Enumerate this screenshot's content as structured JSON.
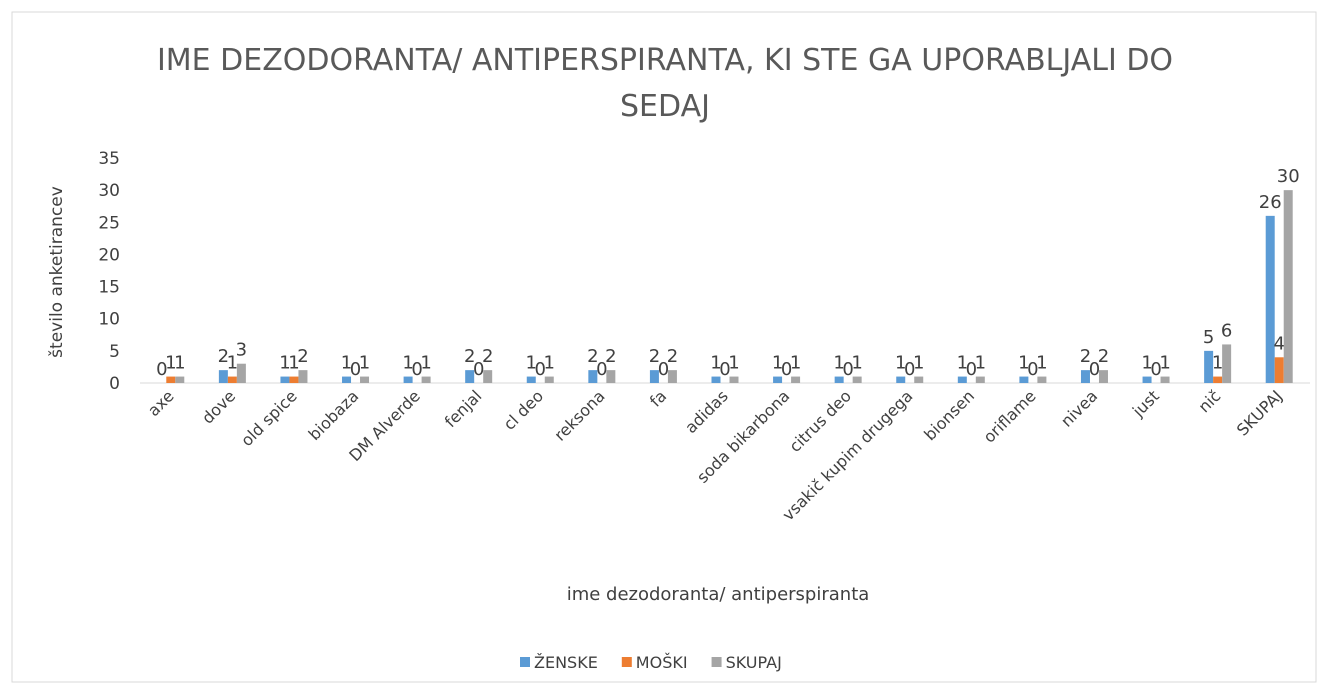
{
  "chart_data": {
    "type": "bar",
    "title": "IME DEZODORANTA/ ANTIPERSPIRANTA, KI STE GA UPORABLJALI DO SEDAJ",
    "x_label": "ime dezodoranta/ antiperspiranta",
    "y_label": "število anketirancev",
    "categories": [
      "axe",
      "dove",
      "old spice",
      "biobaza",
      "DM Alverde",
      "fenjal",
      "cl deo",
      "reksona",
      "fa",
      "adidas",
      "soda bikarbona",
      "citrus deo",
      "vsakič kupim drugega",
      "bionsen",
      "oriflame",
      "nivea",
      "just",
      "nič",
      "SKUPAJ"
    ],
    "series": [
      {
        "name": "ŽENSKE",
        "color": "#5b9bd5",
        "values": [
          0,
          2,
          1,
          1,
          1,
          2,
          1,
          2,
          2,
          1,
          1,
          1,
          1,
          1,
          1,
          2,
          1,
          5,
          26
        ]
      },
      {
        "name": "MOŠKI",
        "color": "#ed7d31",
        "values": [
          1,
          1,
          1,
          0,
          0,
          0,
          0,
          0,
          0,
          0,
          0,
          0,
          0,
          0,
          0,
          0,
          0,
          1,
          4
        ]
      },
      {
        "name": "SKUPAJ",
        "color": "#a5a5a5",
        "values": [
          1,
          3,
          2,
          1,
          1,
          2,
          1,
          2,
          2,
          1,
          1,
          1,
          1,
          1,
          1,
          2,
          1,
          6,
          30
        ]
      }
    ],
    "ylim": [
      0,
      35
    ],
    "yticks": [
      0,
      5,
      10,
      15,
      20,
      25,
      30,
      35
    ],
    "grid": false,
    "legend": "bottom"
  }
}
